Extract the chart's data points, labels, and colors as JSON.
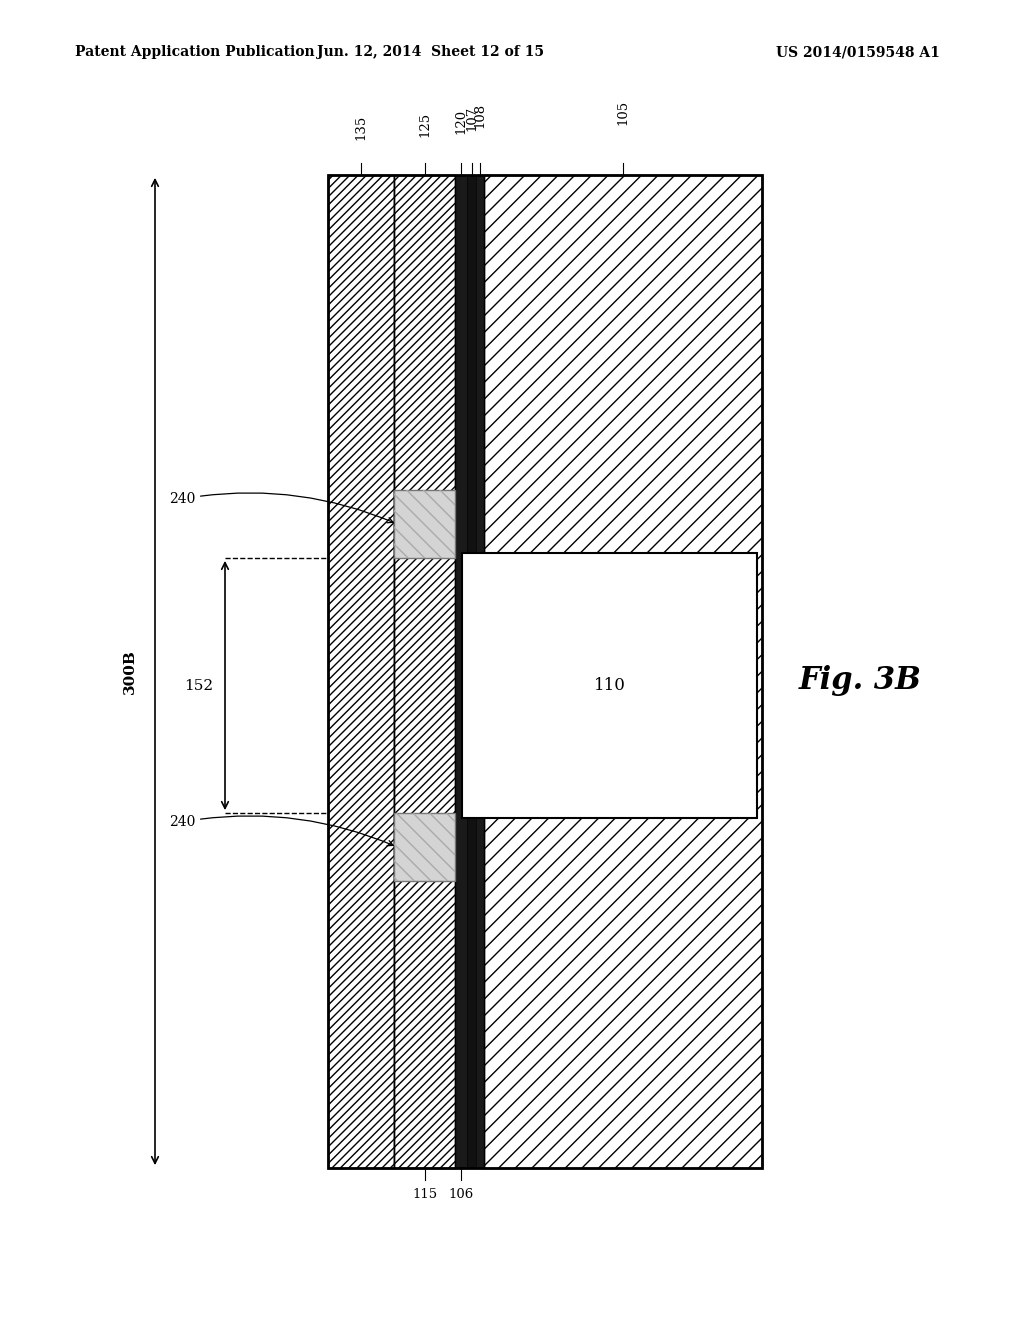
{
  "bg_color": "#ffffff",
  "header_left": "Patent Application Publication",
  "header_mid": "Jun. 12, 2014  Sheet 12 of 15",
  "header_right": "US 2014/0159548 A1",
  "fig_label": "Fig. 3B",
  "device_label": "300B",
  "label_152": "152",
  "label_240": "240",
  "label_110": "110",
  "labels_top": [
    "135",
    "125",
    "120",
    "107",
    "108",
    "105"
  ],
  "labels_bot": [
    "115",
    "106"
  ]
}
